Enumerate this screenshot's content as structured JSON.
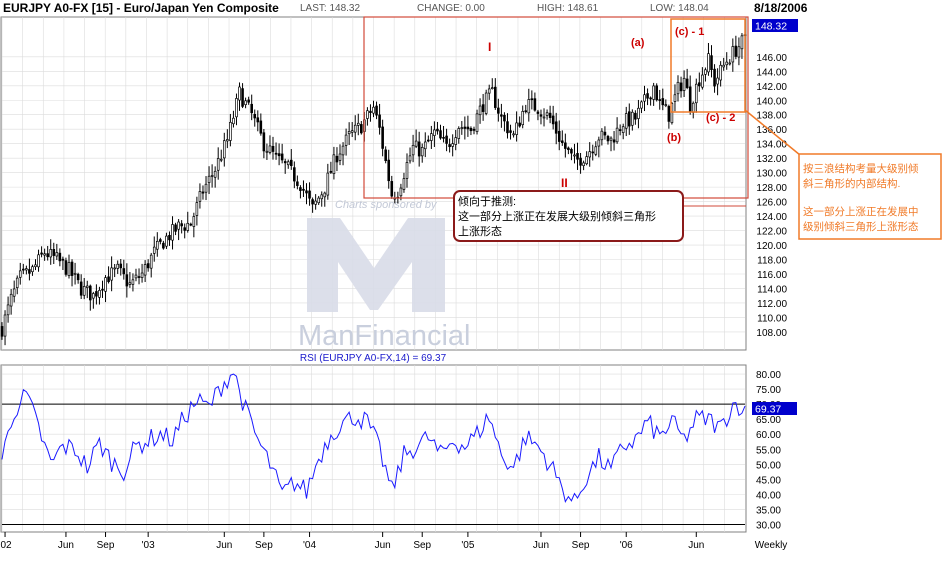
{
  "header": {
    "title": "EURJPY A0-FX [15] - Euro/Japan Yen Composite",
    "last": "LAST: 148.32",
    "change": "CHANGE: 0.00",
    "high": "HIGH: 148.61",
    "low": "LOW: 148.04",
    "date": "8/18/2006"
  },
  "watermark": {
    "sponsor": "Charts sponsored by",
    "brand": "ManFinancial"
  },
  "annotations": {
    "wave_I": "I",
    "wave_II": "II",
    "wave_a": "(a)",
    "wave_b": "(b)",
    "wave_c1": "(c) - 1",
    "wave_c2": "(c) - 2",
    "inference_line1": "倾向于推测:",
    "inference_line2": "这一部分上涨正在发展大级别倾斜三角形",
    "inference_line3": "上涨形态",
    "side_note_line1": "按三浪结构考量大级别倾",
    "side_note_line2": "斜三角形的内部结构.",
    "side_note_line3": "这一部分上涨正在发展中",
    "side_note_line4": "级别倾斜三角形上涨形态"
  },
  "colors": {
    "candle": "#000000",
    "rsi_line": "#1a1aff",
    "price_box": "#0000cc",
    "annotation_red": "#cc0000",
    "callout_border": "#8b1a1a",
    "orange": "#f07a28",
    "grid": "#dcdcdc"
  },
  "chart_data": [
    {
      "type": "candlestick",
      "name": "price",
      "title": "EURJPY A0-FX [15] - Euro/Japan Yen Composite",
      "x_ticks": [
        "'02",
        "Jun",
        "Sep",
        "'03",
        "Jun",
        "Sep",
        "'04",
        "Jun",
        "Sep",
        "'05",
        "Jun",
        "Sep",
        "'06",
        "Jun",
        "Weekly"
      ],
      "y_ticks": [
        108,
        110,
        112,
        114,
        116,
        118,
        120,
        122,
        124,
        126,
        128,
        130,
        132,
        134,
        136,
        138,
        140,
        142,
        144,
        146
      ],
      "ylim": [
        105.5,
        151.5
      ],
      "last_price": "148.32",
      "grid": true,
      "keypoints": [
        {
          "x": 0,
          "y": 108.5
        },
        {
          "x": 3,
          "y": 112.5
        },
        {
          "x": 6,
          "y": 115.5
        },
        {
          "x": 10,
          "y": 116.5
        },
        {
          "x": 14,
          "y": 119.0
        },
        {
          "x": 18,
          "y": 118.0
        },
        {
          "x": 22,
          "y": 116.5
        },
        {
          "x": 26,
          "y": 114.0
        },
        {
          "x": 30,
          "y": 113.0
        },
        {
          "x": 34,
          "y": 115.5
        },
        {
          "x": 38,
          "y": 116.5
        },
        {
          "x": 42,
          "y": 114.5
        },
        {
          "x": 46,
          "y": 116.0
        },
        {
          "x": 50,
          "y": 119.0
        },
        {
          "x": 54,
          "y": 121.0
        },
        {
          "x": 58,
          "y": 122.5
        },
        {
          "x": 62,
          "y": 123.0
        },
        {
          "x": 66,
          "y": 127.5
        },
        {
          "x": 70,
          "y": 130.5
        },
        {
          "x": 74,
          "y": 134.5
        },
        {
          "x": 78,
          "y": 141.0
        },
        {
          "x": 82,
          "y": 138.0
        },
        {
          "x": 86,
          "y": 134.0
        },
        {
          "x": 90,
          "y": 132.0
        },
        {
          "x": 94,
          "y": 130.5
        },
        {
          "x": 98,
          "y": 128.5
        },
        {
          "x": 102,
          "y": 125.0
        },
        {
          "x": 106,
          "y": 128.0
        },
        {
          "x": 110,
          "y": 132.5
        },
        {
          "x": 114,
          "y": 135.0
        },
        {
          "x": 118,
          "y": 136.5
        },
        {
          "x": 122,
          "y": 139.0
        },
        {
          "x": 124,
          "y": 136.0
        },
        {
          "x": 126,
          "y": 131.5
        },
        {
          "x": 128,
          "y": 127.0
        },
        {
          "x": 130,
          "y": 127.5
        },
        {
          "x": 132,
          "y": 130.0
        },
        {
          "x": 135,
          "y": 133.5
        },
        {
          "x": 138,
          "y": 133.0
        },
        {
          "x": 142,
          "y": 135.5
        },
        {
          "x": 146,
          "y": 133.5
        },
        {
          "x": 150,
          "y": 136.5
        },
        {
          "x": 154,
          "y": 136.0
        },
        {
          "x": 158,
          "y": 139.5
        },
        {
          "x": 161,
          "y": 141.0
        },
        {
          "x": 164,
          "y": 137.5
        },
        {
          "x": 168,
          "y": 135.0
        },
        {
          "x": 172,
          "y": 139.5
        },
        {
          "x": 176,
          "y": 139.0
        },
        {
          "x": 180,
          "y": 137.5
        },
        {
          "x": 184,
          "y": 134.0
        },
        {
          "x": 188,
          "y": 131.5
        },
        {
          "x": 192,
          "y": 132.5
        },
        {
          "x": 196,
          "y": 135.0
        },
        {
          "x": 200,
          "y": 134.5
        },
        {
          "x": 204,
          "y": 137.0
        },
        {
          "x": 208,
          "y": 137.5
        },
        {
          "x": 212,
          "y": 140.5
        },
        {
          "x": 214,
          "y": 142.0
        },
        {
          "x": 216,
          "y": 139.5
        },
        {
          "x": 219,
          "y": 138.0
        },
        {
          "x": 222,
          "y": 141.5
        },
        {
          "x": 224,
          "y": 143.0
        },
        {
          "x": 226,
          "y": 139.5
        },
        {
          "x": 229,
          "y": 143.0
        },
        {
          "x": 232,
          "y": 145.5
        },
        {
          "x": 234,
          "y": 142.5
        },
        {
          "x": 236,
          "y": 144.0
        },
        {
          "x": 238,
          "y": 145.5
        },
        {
          "x": 240,
          "y": 146.5
        },
        {
          "x": 242,
          "y": 147.5
        },
        {
          "x": 244,
          "y": 148.3
        }
      ]
    },
    {
      "type": "line",
      "name": "rsi",
      "title": "RSI (EURJPY A0-FX,14) = 69.37",
      "y_ticks": [
        30,
        35,
        40,
        45,
        50,
        55,
        60,
        65,
        70,
        75,
        80
      ],
      "ylim": [
        27.5,
        83
      ],
      "reference_lines": [
        70,
        30
      ],
      "last_value": "69.37",
      "grid": true,
      "keypoints": [
        {
          "x": 0,
          "y": 52
        },
        {
          "x": 4,
          "y": 68
        },
        {
          "x": 8,
          "y": 73
        },
        {
          "x": 12,
          "y": 62
        },
        {
          "x": 16,
          "y": 50
        },
        {
          "x": 20,
          "y": 56
        },
        {
          "x": 24,
          "y": 55
        },
        {
          "x": 28,
          "y": 49
        },
        {
          "x": 32,
          "y": 57
        },
        {
          "x": 36,
          "y": 51
        },
        {
          "x": 40,
          "y": 48
        },
        {
          "x": 44,
          "y": 56
        },
        {
          "x": 48,
          "y": 58
        },
        {
          "x": 52,
          "y": 60
        },
        {
          "x": 56,
          "y": 58
        },
        {
          "x": 60,
          "y": 66
        },
        {
          "x": 64,
          "y": 71
        },
        {
          "x": 68,
          "y": 69
        },
        {
          "x": 72,
          "y": 76
        },
        {
          "x": 76,
          "y": 81
        },
        {
          "x": 80,
          "y": 68
        },
        {
          "x": 84,
          "y": 58
        },
        {
          "x": 88,
          "y": 50
        },
        {
          "x": 92,
          "y": 40
        },
        {
          "x": 96,
          "y": 44
        },
        {
          "x": 100,
          "y": 41
        },
        {
          "x": 104,
          "y": 52
        },
        {
          "x": 108,
          "y": 60
        },
        {
          "x": 112,
          "y": 64
        },
        {
          "x": 116,
          "y": 66
        },
        {
          "x": 120,
          "y": 64
        },
        {
          "x": 124,
          "y": 55
        },
        {
          "x": 128,
          "y": 41
        },
        {
          "x": 132,
          "y": 53
        },
        {
          "x": 136,
          "y": 56
        },
        {
          "x": 140,
          "y": 59
        },
        {
          "x": 144,
          "y": 53
        },
        {
          "x": 148,
          "y": 58
        },
        {
          "x": 152,
          "y": 56
        },
        {
          "x": 156,
          "y": 60
        },
        {
          "x": 160,
          "y": 66
        },
        {
          "x": 164,
          "y": 53
        },
        {
          "x": 168,
          "y": 49
        },
        {
          "x": 172,
          "y": 59
        },
        {
          "x": 176,
          "y": 56
        },
        {
          "x": 180,
          "y": 50
        },
        {
          "x": 184,
          "y": 42
        },
        {
          "x": 188,
          "y": 37
        },
        {
          "x": 192,
          "y": 46
        },
        {
          "x": 196,
          "y": 52
        },
        {
          "x": 200,
          "y": 48
        },
        {
          "x": 204,
          "y": 56
        },
        {
          "x": 208,
          "y": 58
        },
        {
          "x": 212,
          "y": 64
        },
        {
          "x": 216,
          "y": 59
        },
        {
          "x": 220,
          "y": 64
        },
        {
          "x": 224,
          "y": 58
        },
        {
          "x": 228,
          "y": 65
        },
        {
          "x": 232,
          "y": 65
        },
        {
          "x": 236,
          "y": 62
        },
        {
          "x": 240,
          "y": 70
        },
        {
          "x": 244,
          "y": 69.37
        }
      ]
    }
  ]
}
